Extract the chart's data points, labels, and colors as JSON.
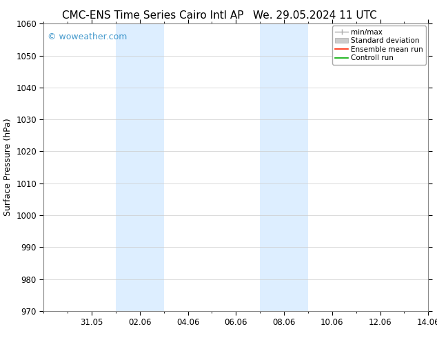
{
  "title_left": "CMC-ENS Time Series Cairo Intl AP",
  "title_right": "We. 29.05.2024 11 UTC",
  "ylabel": "Surface Pressure (hPa)",
  "ylim": [
    970,
    1060
  ],
  "yticks": [
    970,
    980,
    990,
    1000,
    1010,
    1020,
    1030,
    1040,
    1050,
    1060
  ],
  "xtick_labels": [
    "31.05",
    "02.06",
    "04.06",
    "06.06",
    "08.06",
    "10.06",
    "12.06",
    "14.06"
  ],
  "xtick_positions": [
    2,
    4,
    6,
    8,
    10,
    12,
    14,
    16
  ],
  "xlim": [
    0,
    16
  ],
  "watermark": "© woweather.com",
  "watermark_color": "#4499cc",
  "bg_color": "#ffffff",
  "shaded_bands": [
    {
      "xstart": 3.0,
      "xend": 5.0,
      "color": "#ddeeff"
    },
    {
      "xstart": 9.0,
      "xend": 11.0,
      "color": "#ddeeff"
    }
  ],
  "grid_color": "#cccccc",
  "spine_color": "#888888",
  "title_fontsize": 11,
  "tick_fontsize": 8.5,
  "label_fontsize": 9,
  "watermark_fontsize": 9,
  "legend_fontsize": 7.5
}
